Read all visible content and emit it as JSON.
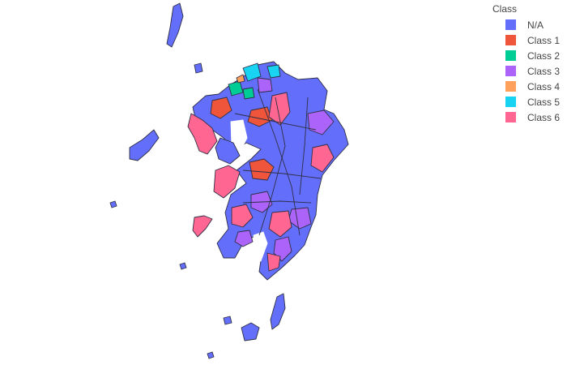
{
  "legend": {
    "title": "Class",
    "items": [
      {
        "label": "N/A",
        "color": "#636efa"
      },
      {
        "label": "Class 1",
        "color": "#ef553b"
      },
      {
        "label": "Class 2",
        "color": "#00cc96"
      },
      {
        "label": "Class 3",
        "color": "#ab63fa"
      },
      {
        "label": "Class 4",
        "color": "#ffa15a"
      },
      {
        "label": "Class 5",
        "color": "#19d3f3"
      },
      {
        "label": "Class 6",
        "color": "#ff6692"
      }
    ]
  },
  "map": {
    "region": "Kyushu municipalities choropleth"
  }
}
